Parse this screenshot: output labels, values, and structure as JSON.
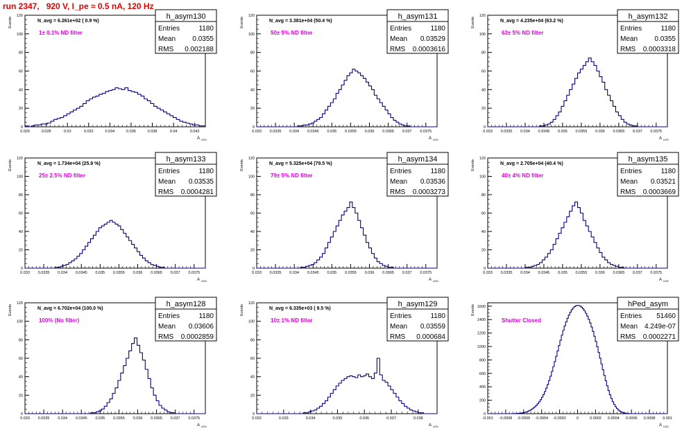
{
  "title": "run 2347,   920 V, I_pe ≈ 0.5 nA, 120 Hz",
  "ylabel": "Events",
  "xlabel": "A",
  "xlabel_sub": "LED",
  "stats_labels": [
    "Entries",
    "Mean",
    "RMS"
  ],
  "colors": {
    "title": "#e00000",
    "filter": "#e000e0",
    "hist": "#000080",
    "frame": "#000000"
  },
  "chart_data": [
    {
      "type": "bar",
      "name": "h_asym130",
      "navg": "N_avg = 6.261e+02 ( 0.9 %)",
      "filter": "1± 0.1% ND filter",
      "stats": [
        "1180",
        "0.0355",
        "0.002188"
      ],
      "xticks": [
        "0.026",
        "0.028",
        "0.03",
        "0.032",
        "0.034",
        "0.036",
        "0.038",
        "0.04",
        "0.042"
      ],
      "xlim": [
        0.026,
        0.043
      ],
      "yticks": [
        "0",
        "20",
        "40",
        "60",
        "80",
        "100",
        "120"
      ],
      "ylim": [
        0,
        120
      ],
      "values": [
        1,
        0,
        1,
        2,
        2,
        3,
        3,
        4,
        6,
        8,
        9,
        10,
        12,
        14,
        16,
        18,
        20,
        22,
        25,
        28,
        30,
        32,
        33,
        35,
        36,
        38,
        39,
        40,
        42,
        41,
        40,
        42,
        39,
        38,
        37,
        35,
        33,
        30,
        28,
        25,
        22,
        20,
        18,
        16,
        14,
        12,
        10,
        8,
        6,
        5,
        4,
        3,
        2,
        2,
        1,
        1
      ]
    },
    {
      "type": "bar",
      "name": "h_asym131",
      "navg": "N_avg = 3.381e+04 (50.4 %)",
      "filter": "50± 5% ND filter",
      "stats": [
        "1180",
        "0.03529",
        "0.0003616"
      ],
      "xticks": [
        "0.033",
        "0.0335",
        "0.034",
        "0.0345",
        "0.035",
        "0.0355",
        "0.036",
        "0.0365",
        "0.037",
        "0.0375"
      ],
      "xlim": [
        0.033,
        0.0378
      ],
      "yticks": [
        "0",
        "20",
        "40",
        "60",
        "80",
        "100",
        "120"
      ],
      "ylim": [
        0,
        120
      ],
      "values": [
        0,
        0,
        0,
        0,
        0,
        0,
        0,
        0,
        0,
        0,
        0,
        0,
        0,
        0,
        0,
        1,
        1,
        2,
        2,
        3,
        4,
        6,
        8,
        10,
        14,
        18,
        22,
        26,
        30,
        36,
        40,
        45,
        50,
        55,
        58,
        62,
        60,
        58,
        55,
        52,
        48,
        44,
        40,
        34,
        30,
        26,
        22,
        18,
        14,
        10,
        7,
        5,
        3,
        2,
        1,
        1,
        0,
        0,
        0,
        0,
        0,
        0,
        0,
        0,
        0,
        0
      ]
    },
    {
      "type": "bar",
      "name": "h_asym132",
      "navg": "N_avg = 4.235e+04 (63.2 %)",
      "filter": "63± 5% ND filter",
      "stats": [
        "1180",
        "0.0355",
        "0.0003318"
      ],
      "xticks": [
        "0.033",
        "0.0335",
        "0.034",
        "0.0345",
        "0.035",
        "0.0355",
        "0.036",
        "0.0365",
        "0.037",
        "0.0375"
      ],
      "xlim": [
        0.033,
        0.0378
      ],
      "yticks": [
        "0",
        "20",
        "40",
        "60",
        "80",
        "100",
        "120"
      ],
      "ylim": [
        0,
        120
      ],
      "values": [
        0,
        0,
        0,
        0,
        0,
        0,
        0,
        0,
        0,
        0,
        0,
        0,
        0,
        0,
        0,
        0,
        0,
        0,
        0,
        1,
        1,
        2,
        3,
        5,
        8,
        12,
        16,
        22,
        28,
        34,
        40,
        46,
        52,
        58,
        62,
        66,
        70,
        74,
        70,
        66,
        60,
        54,
        48,
        40,
        34,
        28,
        22,
        16,
        12,
        8,
        5,
        3,
        2,
        1,
        1,
        0,
        0,
        0,
        0,
        0,
        0,
        0,
        0,
        0,
        0,
        0
      ]
    },
    {
      "type": "bar",
      "name": "h_asym133",
      "navg": "N_avg = 1.734e+04 (25.9 %)",
      "filter": "25± 2.5% ND filter",
      "stats": [
        "1180",
        "0.03535",
        "0.0004281"
      ],
      "xticks": [
        "0.033",
        "0.0335",
        "0.034",
        "0.0345",
        "0.035",
        "0.0355",
        "0.036",
        "0.0365",
        "0.037",
        "0.0375"
      ],
      "xlim": [
        0.033,
        0.0378
      ],
      "yticks": [
        "0",
        "20",
        "40",
        "60",
        "80",
        "100",
        "120"
      ],
      "ylim": [
        0,
        120
      ],
      "values": [
        0,
        0,
        0,
        0,
        0,
        0,
        0,
        0,
        0,
        0,
        0,
        1,
        1,
        2,
        3,
        4,
        6,
        8,
        10,
        13,
        16,
        20,
        24,
        28,
        32,
        36,
        40,
        44,
        46,
        48,
        50,
        52,
        50,
        48,
        46,
        42,
        38,
        34,
        30,
        26,
        22,
        18,
        14,
        11,
        8,
        6,
        4,
        3,
        2,
        1,
        1,
        0,
        0,
        0,
        0,
        0,
        0,
        0,
        0,
        0,
        0,
        0,
        0,
        0,
        0,
        0
      ]
    },
    {
      "type": "bar",
      "name": "h_asym134",
      "navg": "N_avg = 5.325e+04 (79.5 %)",
      "filter": "79± 5% ND filter",
      "stats": [
        "1180",
        "0.03536",
        "0.0003273"
      ],
      "xticks": [
        "0.033",
        "0.0335",
        "0.034",
        "0.0345",
        "0.035",
        "0.0355",
        "0.036",
        "0.0365",
        "0.037",
        "0.0375"
      ],
      "xlim": [
        0.033,
        0.0378
      ],
      "yticks": [
        "0",
        "20",
        "40",
        "60",
        "80",
        "100",
        "120"
      ],
      "ylim": [
        0,
        120
      ],
      "values": [
        0,
        0,
        0,
        0,
        0,
        0,
        0,
        0,
        0,
        0,
        0,
        0,
        0,
        0,
        0,
        0,
        1,
        1,
        2,
        3,
        4,
        6,
        9,
        12,
        16,
        22,
        28,
        34,
        40,
        46,
        52,
        58,
        62,
        66,
        72,
        66,
        60,
        52,
        44,
        36,
        28,
        22,
        16,
        11,
        7,
        5,
        3,
        2,
        1,
        1,
        0,
        0,
        0,
        0,
        0,
        0,
        0,
        0,
        0,
        0,
        0,
        0,
        0,
        0,
        0,
        0
      ]
    },
    {
      "type": "bar",
      "name": "h_asym135",
      "navg": "N_avg = 2.705e+04 (40.4 %)",
      "filter": "40± 4% ND filter",
      "stats": [
        "1180",
        "0.03521",
        "0.0003669"
      ],
      "xticks": [
        "0.033",
        "0.0335",
        "0.034",
        "0.0345",
        "0.035",
        "0.0355",
        "0.036",
        "0.0365",
        "0.037",
        "0.0375"
      ],
      "xlim": [
        0.033,
        0.0378
      ],
      "yticks": [
        "0",
        "20",
        "40",
        "60",
        "80",
        "100",
        "120"
      ],
      "ylim": [
        0,
        120
      ],
      "values": [
        0,
        0,
        0,
        0,
        0,
        0,
        0,
        0,
        0,
        0,
        0,
        0,
        0,
        0,
        1,
        1,
        2,
        3,
        4,
        6,
        9,
        12,
        16,
        20,
        26,
        32,
        38,
        44,
        50,
        56,
        62,
        68,
        72,
        66,
        60,
        52,
        46,
        40,
        34,
        28,
        22,
        17,
        12,
        9,
        6,
        4,
        3,
        2,
        1,
        1,
        0,
        0,
        0,
        0,
        0,
        0,
        0,
        0,
        0,
        0,
        0,
        0,
        0,
        0,
        0,
        0
      ]
    },
    {
      "type": "bar",
      "name": "h_asym128",
      "navg": "N_avg = 6.702e+04 (100.0 %)",
      "filter": "100% (No filter)",
      "stats": [
        "1180",
        "0.03606",
        "0.0002859"
      ],
      "xticks": [
        "0.033",
        "0.0335",
        "0.034",
        "0.0345",
        "0.035",
        "0.0355",
        "0.036",
        "0.0365",
        "0.037",
        "0.0375"
      ],
      "xlim": [
        0.033,
        0.0378
      ],
      "yticks": [
        "0",
        "20",
        "40",
        "60",
        "80",
        "100",
        "120"
      ],
      "ylim": [
        0,
        120
      ],
      "values": [
        0,
        0,
        0,
        0,
        0,
        0,
        0,
        0,
        0,
        0,
        0,
        0,
        0,
        0,
        0,
        0,
        0,
        0,
        0,
        0,
        0,
        0,
        0,
        0,
        1,
        1,
        2,
        3,
        5,
        8,
        12,
        16,
        22,
        28,
        36,
        44,
        52,
        60,
        68,
        76,
        82,
        74,
        66,
        58,
        48,
        38,
        28,
        20,
        14,
        9,
        6,
        4,
        2,
        1,
        1,
        0,
        0,
        0,
        0,
        0,
        0,
        0,
        0,
        0,
        0,
        0
      ]
    },
    {
      "type": "bar",
      "name": "h_asym129",
      "navg": "N_avg = 6.335e+03 ( 9.5 %)",
      "filter": "10± 1% ND filter",
      "stats": [
        "1180",
        "0.03559",
        "0.000684"
      ],
      "xticks": [
        "0.032",
        "0.033",
        "0.034",
        "0.035",
        "0.036",
        "0.037",
        "0.038"
      ],
      "xlim": [
        0.032,
        0.0387
      ],
      "yticks": [
        "0",
        "20",
        "40",
        "60",
        "80",
        "100",
        "120"
      ],
      "ylim": [
        0,
        120
      ],
      "values": [
        0,
        0,
        0,
        0,
        0,
        0,
        0,
        0,
        0,
        0,
        0,
        0,
        0,
        0,
        0,
        0,
        0,
        1,
        1,
        2,
        3,
        4,
        6,
        8,
        11,
        14,
        18,
        22,
        26,
        30,
        33,
        36,
        38,
        40,
        41,
        40,
        39,
        42,
        40,
        41,
        43,
        40,
        38,
        44,
        60,
        42,
        36,
        34,
        30,
        26,
        22,
        18,
        14,
        11,
        8,
        6,
        4,
        3,
        2,
        1,
        1,
        0,
        0,
        0,
        0,
        0
      ]
    },
    {
      "type": "bar",
      "name": "hPed_asym",
      "navg": "",
      "filter": "Shutter Closed",
      "stats": [
        "51460",
        "4.249e-07",
        "0.0002271"
      ],
      "xticks": [
        "-0.001",
        "-0.0008",
        "-0.0006",
        "-0.0004",
        "-0.0002",
        "0",
        "0.0002",
        "0.0004",
        "0.0006",
        "0.0008",
        "0.001"
      ],
      "xlim": [
        -0.001,
        0.001
      ],
      "yticks": [
        "0",
        "200",
        "400",
        "600",
        "800",
        "1000",
        "1200",
        "1400",
        "1600"
      ],
      "ylim": [
        0,
        1650
      ],
      "values": [
        0,
        0,
        0,
        0,
        0,
        0,
        0,
        0,
        0,
        0,
        0,
        0,
        0,
        0,
        0,
        0,
        0,
        1,
        1,
        2,
        3,
        4,
        6,
        8,
        11,
        15,
        20,
        26,
        34,
        44,
        56,
        70,
        86,
        104,
        124,
        148,
        176,
        208,
        244,
        284,
        330,
        380,
        434,
        494,
        558,
        628,
        700,
        776,
        854,
        934,
        1014,
        1092,
        1168,
        1240,
        1306,
        1366,
        1420,
        1468,
        1510,
        1546,
        1574,
        1594,
        1606,
        1612,
        1610,
        1600,
        1584,
        1560,
        1530,
        1494,
        1452,
        1404,
        1350,
        1290,
        1224,
        1152,
        1076,
        996,
        912,
        826,
        740,
        654,
        570,
        490,
        414,
        344,
        282,
        226,
        178,
        138,
        104,
        76,
        54,
        38,
        26,
        17,
        11,
        7,
        4,
        2,
        1,
        0,
        0,
        0,
        0,
        0,
        0,
        0,
        0,
        0,
        0,
        0,
        0,
        0,
        0,
        0,
        0,
        0,
        0,
        0,
        0,
        0,
        0,
        0,
        0,
        0,
        0
      ]
    }
  ]
}
